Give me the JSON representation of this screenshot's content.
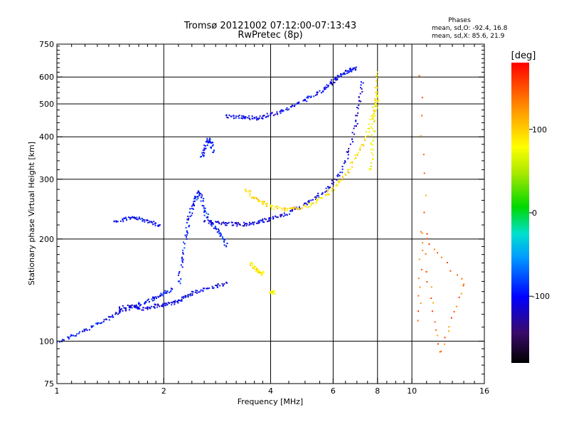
{
  "chart_data": {
    "type": "scatter",
    "title": "Tromsø 20121002 07:12:00-07:13:43",
    "subtitle": "RwPretec (8p)",
    "xlabel": "Frequency [MHz]",
    "ylabel": "Stationary phase Virtual Height [km]",
    "x_scale": "log",
    "y_scale": "log",
    "xlim": [
      1,
      16
    ],
    "ylim": [
      75,
      750
    ],
    "x_ticks": [
      1,
      2,
      4,
      6,
      8,
      10,
      16
    ],
    "x_tick_labels": [
      "1",
      "2",
      "4",
      "6",
      "8",
      "10",
      "16"
    ],
    "y_ticks": [
      75,
      100,
      200,
      300,
      400,
      500,
      600,
      750
    ],
    "y_tick_labels": [
      "75",
      "100",
      "200",
      "300",
      "400",
      "500",
      "600",
      "750"
    ],
    "grid": true,
    "phase_info": {
      "heading": "Phases",
      "line1": "mean, sd,O: -92.4, 16.8",
      "line2": "mean, sd,X:  85.6, 21.9"
    },
    "colorbar": {
      "label": "[deg]",
      "range": [
        -180,
        180
      ],
      "ticks": [
        100,
        0,
        -100
      ],
      "tick_labels": [
        "100",
        "0",
        "-100"
      ]
    },
    "traces": [
      {
        "x": [
          1.0,
          1.1,
          1.2,
          1.3,
          1.4,
          1.5,
          1.6,
          1.7,
          1.8,
          1.9,
          2.0,
          2.1
        ],
        "y": [
          100,
          104,
          108,
          113,
          118,
          123,
          126,
          129,
          132,
          135,
          139,
          143
        ],
        "phase": -100
      },
      {
        "x": [
          1.5,
          1.6,
          1.7,
          1.8,
          1.9,
          2.0,
          2.1,
          2.2,
          2.3,
          2.4,
          2.6,
          2.8,
          3.0
        ],
        "y": [
          126,
          127,
          125,
          126,
          128,
          128,
          130,
          132,
          136,
          140,
          143,
          146,
          149
        ],
        "phase": -110
      },
      {
        "x": [
          2.2,
          2.25,
          2.3,
          2.35,
          2.4,
          2.45,
          2.5,
          2.55,
          2.6,
          2.7,
          2.8,
          2.9,
          3.0
        ],
        "y": [
          150,
          175,
          205,
          230,
          250,
          265,
          275,
          265,
          240,
          225,
          215,
          205,
          190
        ],
        "phase": -95
      },
      {
        "x": [
          2.6,
          2.8,
          3.0,
          3.2,
          3.4,
          3.6,
          3.8,
          4.0,
          4.3,
          4.6,
          5.0,
          5.4,
          5.8,
          6.2,
          6.6,
          6.9,
          7.1,
          7.2
        ],
        "y": [
          225,
          225,
          223,
          222,
          222,
          224,
          227,
          230,
          236,
          244,
          255,
          268,
          285,
          310,
          360,
          430,
          510,
          580
        ],
        "phase": -110
      },
      {
        "x": [
          3.4,
          3.6,
          3.8,
          4.0,
          4.3,
          4.6,
          5.0,
          5.4,
          5.8,
          6.2,
          6.6,
          7.0,
          7.4,
          7.7,
          7.9,
          8.0
        ],
        "y": [
          280,
          265,
          256,
          250,
          246,
          246,
          250,
          260,
          275,
          295,
          320,
          355,
          400,
          460,
          540,
          620
        ],
        "phase": 90
      },
      {
        "x": [
          3.0,
          3.2,
          3.4,
          3.6,
          3.8,
          4.0,
          4.3,
          4.6,
          5.0,
          5.4,
          5.7,
          5.9,
          6.1,
          6.3,
          6.5,
          6.7,
          6.9
        ],
        "y": [
          462,
          460,
          458,
          456,
          460,
          468,
          480,
          495,
          515,
          540,
          560,
          580,
          598,
          612,
          625,
          632,
          638
        ],
        "phase": -105
      },
      {
        "x": [
          1.45,
          1.55,
          1.65,
          1.75,
          1.85,
          1.95
        ],
        "y": [
          225,
          230,
          232,
          228,
          224,
          220
        ],
        "phase": -105
      },
      {
        "x": [
          2.55,
          2.6,
          2.65,
          2.7,
          2.75
        ],
        "y": [
          350,
          370,
          395,
          385,
          360
        ],
        "phase": -95
      },
      {
        "x": [
          3.5,
          3.6,
          3.7,
          3.8
        ],
        "y": [
          170,
          165,
          160,
          158
        ],
        "phase": 85
      },
      {
        "x": [
          4.0,
          4.1
        ],
        "y": [
          140,
          140
        ],
        "phase": 80
      },
      {
        "x": [
          7.6,
          7.7,
          7.8,
          7.9,
          8.0
        ],
        "y": [
          320,
          380,
          450,
          500,
          530
        ],
        "phase": 75
      },
      {
        "x": [
          10.5,
          11.0,
          12.0,
          14.0,
          10.6,
          10.4
        ],
        "y": [
          605,
          160,
          93,
          147,
          210,
          115
        ],
        "phase": 140
      }
    ]
  }
}
